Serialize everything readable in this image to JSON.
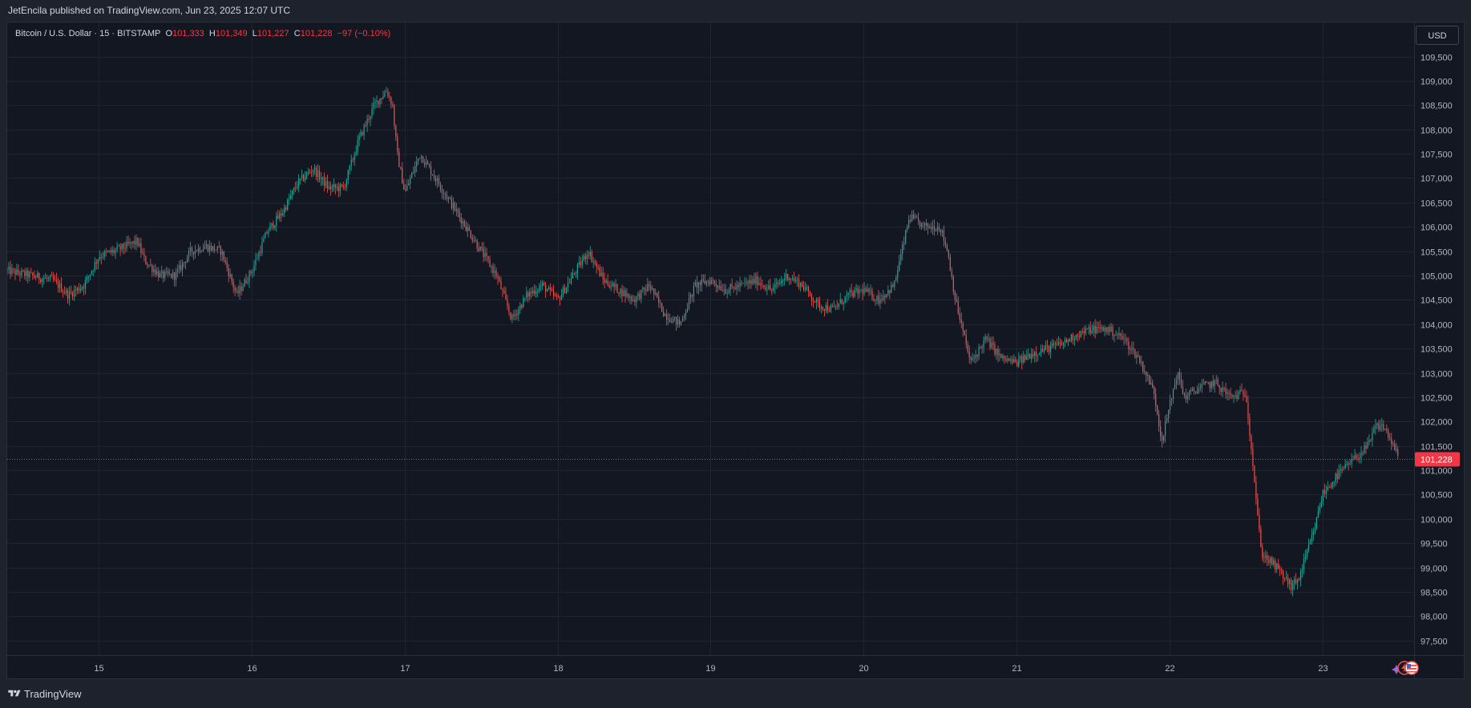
{
  "header": {
    "published_line": "JetEncila published on TradingView.com, Jun 23, 2025 12:07 UTC"
  },
  "legend": {
    "symbol": "Bitcoin / U.S. Dollar · 15 · BITSTAMP",
    "o_label": "O",
    "o_value": "101,333",
    "h_label": "H",
    "h_value": "101,349",
    "l_label": "L",
    "l_value": "101,227",
    "c_label": "C",
    "c_value": "101,228",
    "change": "−97 (−0.10%)"
  },
  "currency": "USD",
  "footer": {
    "brand": "TradingView"
  },
  "colors": {
    "up": "#26a69a",
    "down": "#ef5350",
    "background": "#131722",
    "grid": "#1f2430",
    "last_price": "#f23645"
  },
  "chart_data": {
    "type": "candlestick",
    "title": "Bitcoin / U.S. Dollar · 15 · BITSTAMP",
    "interval": "15",
    "x_ticks": [
      "15",
      "16",
      "17",
      "18",
      "19",
      "20",
      "21",
      "22",
      "23"
    ],
    "y_ticks": [
      "97,500",
      "98,000",
      "98,500",
      "99,000",
      "99,500",
      "100,000",
      "100,500",
      "101,000",
      "101,500",
      "102,000",
      "102,500",
      "103,000",
      "103,500",
      "104,000",
      "104,500",
      "105,000",
      "105,500",
      "106,000",
      "106,500",
      "107,000",
      "107,500",
      "108,000",
      "108,500",
      "109,000",
      "109,500"
    ],
    "ylim": [
      97200,
      110200
    ],
    "xlim_days": [
      14.4,
      23.6
    ],
    "last_price": 101228,
    "last_price_label": "101,228",
    "grid": true,
    "price_path": [
      [
        14.4,
        105100
      ],
      [
        14.55,
        105000
      ],
      [
        14.7,
        104900
      ],
      [
        14.8,
        104600
      ],
      [
        14.9,
        104800
      ],
      [
        15.0,
        105400
      ],
      [
        15.1,
        105500
      ],
      [
        15.25,
        105700
      ],
      [
        15.3,
        105300
      ],
      [
        15.4,
        105000
      ],
      [
        15.5,
        105000
      ],
      [
        15.6,
        105500
      ],
      [
        15.7,
        105600
      ],
      [
        15.8,
        105500
      ],
      [
        15.9,
        104600
      ],
      [
        16.0,
        105100
      ],
      [
        16.1,
        105900
      ],
      [
        16.2,
        106300
      ],
      [
        16.3,
        106900
      ],
      [
        16.4,
        107200
      ],
      [
        16.5,
        106800
      ],
      [
        16.6,
        106800
      ],
      [
        16.7,
        107800
      ],
      [
        16.8,
        108500
      ],
      [
        16.88,
        108800
      ],
      [
        16.92,
        108500
      ],
      [
        16.95,
        107500
      ],
      [
        17.0,
        106700
      ],
      [
        17.1,
        107500
      ],
      [
        17.2,
        107000
      ],
      [
        17.3,
        106500
      ],
      [
        17.4,
        106000
      ],
      [
        17.5,
        105500
      ],
      [
        17.6,
        105000
      ],
      [
        17.7,
        104100
      ],
      [
        17.8,
        104600
      ],
      [
        17.9,
        104800
      ],
      [
        18.0,
        104500
      ],
      [
        18.1,
        105000
      ],
      [
        18.2,
        105500
      ],
      [
        18.3,
        104900
      ],
      [
        18.4,
        104700
      ],
      [
        18.5,
        104500
      ],
      [
        18.6,
        104800
      ],
      [
        18.7,
        104200
      ],
      [
        18.8,
        104000
      ],
      [
        18.9,
        104800
      ],
      [
        19.0,
        104900
      ],
      [
        19.1,
        104700
      ],
      [
        19.2,
        104800
      ],
      [
        19.3,
        104900
      ],
      [
        19.4,
        104700
      ],
      [
        19.5,
        105000
      ],
      [
        19.6,
        104800
      ],
      [
        19.7,
        104400
      ],
      [
        19.8,
        104300
      ],
      [
        19.9,
        104600
      ],
      [
        20.0,
        104700
      ],
      [
        20.1,
        104500
      ],
      [
        20.2,
        104800
      ],
      [
        20.3,
        106200
      ],
      [
        20.4,
        106000
      ],
      [
        20.5,
        106000
      ],
      [
        20.55,
        105500
      ],
      [
        20.6,
        104500
      ],
      [
        20.7,
        103200
      ],
      [
        20.8,
        103700
      ],
      [
        20.9,
        103300
      ],
      [
        21.0,
        103200
      ],
      [
        21.1,
        103400
      ],
      [
        21.2,
        103500
      ],
      [
        21.3,
        103600
      ],
      [
        21.4,
        103800
      ],
      [
        21.5,
        103900
      ],
      [
        21.6,
        103900
      ],
      [
        21.7,
        103700
      ],
      [
        21.8,
        103300
      ],
      [
        21.9,
        102600
      ],
      [
        21.95,
        101600
      ],
      [
        22.0,
        102300
      ],
      [
        22.05,
        103000
      ],
      [
        22.1,
        102500
      ],
      [
        22.2,
        102700
      ],
      [
        22.3,
        102800
      ],
      [
        22.4,
        102500
      ],
      [
        22.5,
        102600
      ],
      [
        22.55,
        101000
      ],
      [
        22.6,
        99300
      ],
      [
        22.7,
        99000
      ],
      [
        22.8,
        98600
      ],
      [
        22.85,
        98800
      ],
      [
        22.9,
        99300
      ],
      [
        22.95,
        99800
      ],
      [
        23.0,
        100500
      ],
      [
        23.1,
        100900
      ],
      [
        23.2,
        101200
      ],
      [
        23.3,
        101500
      ],
      [
        23.35,
        101900
      ],
      [
        23.4,
        101900
      ],
      [
        23.45,
        101600
      ],
      [
        23.5,
        101228
      ]
    ]
  }
}
